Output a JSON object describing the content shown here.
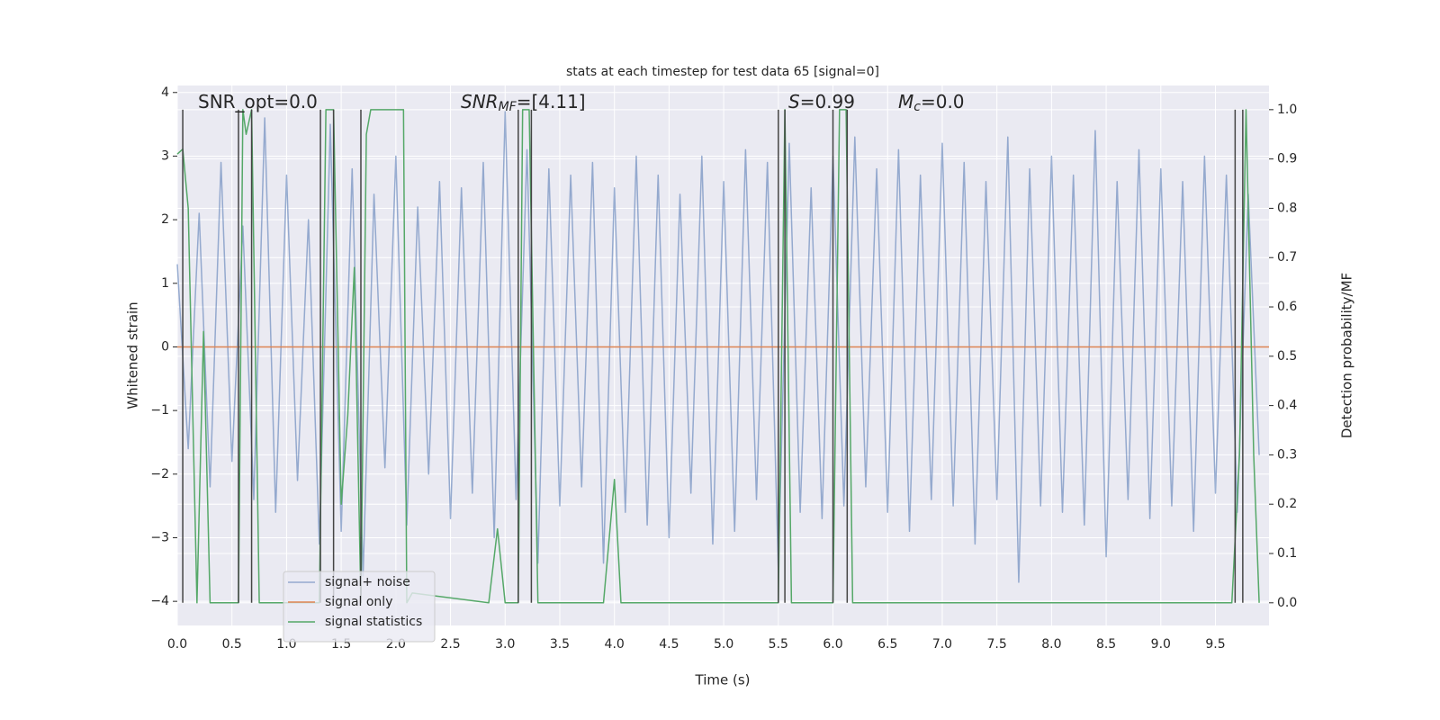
{
  "chart_data": {
    "type": "line",
    "title": "stats at each timestep for test data 65 [signal=0]",
    "xlabel": "Time (s)",
    "ylabel": "Whitened strain",
    "y2label": "Detection probability/MF",
    "xlim": [
      0,
      9.99
    ],
    "ylim": [
      -4.38,
      4.11
    ],
    "y2lim": [
      -0.046,
      1.049
    ],
    "xticks": [
      {
        "value": 0,
        "label": "0.0"
      },
      0.5,
      {
        "value": 1,
        "label": "1.0"
      },
      1.5,
      {
        "value": 2,
        "label": "2.0"
      },
      2.5,
      {
        "value": 3,
        "label": "3.0"
      },
      3.5,
      {
        "value": 4,
        "label": "4.0"
      },
      4.5,
      {
        "value": 5,
        "label": "5.0"
      },
      5.5,
      {
        "value": 6,
        "label": "6.0"
      },
      6.5,
      {
        "value": 7,
        "label": "7.0"
      },
      7.5,
      {
        "value": 8,
        "label": "8.0"
      },
      8.5,
      {
        "value": 9,
        "label": "9.0"
      },
      9.5
    ],
    "yticks": [
      {
        "value": -4,
        "label": "−4"
      },
      {
        "value": -3,
        "label": "−3"
      },
      {
        "value": -2,
        "label": "−2"
      },
      {
        "value": -1,
        "label": "−1"
      },
      0,
      1,
      2,
      3,
      4
    ],
    "y2ticks": [
      {
        "value": 0,
        "label": "0.0"
      },
      0.1,
      0.2,
      0.3,
      0.4,
      0.5,
      0.6,
      0.7,
      0.8,
      0.9,
      {
        "value": 1,
        "label": "1.0"
      }
    ],
    "grid": true,
    "legend": "lower left",
    "annotations": [
      {
        "base": "SNR_opt=0.0"
      },
      {
        "base": "SNR",
        "sub": "MF",
        "tail": "=[4.11]"
      },
      {
        "base": "S",
        "tail": "=0.99"
      },
      {
        "base": "M",
        "sub": "c",
        "tail": "=0.0"
      }
    ],
    "vlines": {
      "color": "#444444",
      "x": [
        0.05,
        0.56,
        0.68,
        1.31,
        1.43,
        1.68,
        3.12,
        3.24,
        5.5,
        5.56,
        6.0,
        6.13,
        9.68,
        9.75
      ],
      "y2": [
        0,
        1
      ]
    },
    "series": [
      {
        "name": "signal+ noise",
        "color": "#4c72b0",
        "x": [
          0,
          0.1,
          0.2,
          0.3,
          0.4,
          0.5,
          0.6,
          0.7,
          0.8,
          0.9,
          1,
          1.1,
          1.2,
          1.3,
          1.4,
          1.5,
          1.6,
          1.7,
          1.8,
          1.9,
          2,
          2.1,
          2.2,
          2.3,
          2.4,
          2.5,
          2.6,
          2.7,
          2.8,
          2.9,
          3,
          3.1,
          3.2,
          3.3,
          3.4,
          3.5,
          3.6,
          3.7,
          3.8,
          3.9,
          4,
          4.1,
          4.2,
          4.3,
          4.4,
          4.5,
          4.6,
          4.7,
          4.8,
          4.9,
          5,
          5.1,
          5.2,
          5.3,
          5.4,
          5.5,
          5.6,
          5.7,
          5.8,
          5.9,
          6,
          6.1,
          6.2,
          6.3,
          6.4,
          6.5,
          6.6,
          6.7,
          6.8,
          6.9,
          7,
          7.1,
          7.2,
          7.3,
          7.4,
          7.5,
          7.6,
          7.7,
          7.8,
          7.9,
          8,
          8.1,
          8.2,
          8.3,
          8.4,
          8.5,
          8.6,
          8.7,
          8.8,
          8.9,
          9,
          9.1,
          9.2,
          9.3,
          9.4,
          9.5,
          9.6,
          9.7,
          9.8,
          9.9
        ],
        "values": [
          1.3,
          -1.6,
          2.1,
          -2.2,
          2.9,
          -1.8,
          1.9,
          -2.4,
          3.6,
          -2.6,
          2.7,
          -2.1,
          2.0,
          -3.1,
          3.5,
          -2.9,
          2.8,
          -3.6,
          2.4,
          -1.9,
          3.0,
          -2.8,
          2.2,
          -2.0,
          2.6,
          -2.7,
          2.5,
          -2.3,
          2.9,
          -3.0,
          3.7,
          -2.4,
          3.1,
          -3.4,
          2.8,
          -2.5,
          2.7,
          -2.2,
          2.9,
          -3.4,
          2.5,
          -2.6,
          3.0,
          -2.8,
          2.7,
          -3.0,
          2.4,
          -2.3,
          3.0,
          -3.1,
          2.6,
          -2.9,
          3.1,
          -2.4,
          2.9,
          -3.5,
          3.2,
          -2.6,
          2.5,
          -2.7,
          3.0,
          -2.5,
          3.3,
          -2.2,
          2.8,
          -2.6,
          3.1,
          -2.9,
          2.7,
          -2.4,
          3.2,
          -2.5,
          2.9,
          -3.1,
          2.6,
          -2.4,
          3.3,
          -3.7,
          2.8,
          -2.5,
          3.0,
          -2.6,
          2.7,
          -2.8,
          3.4,
          -3.3,
          2.6,
          -2.4,
          3.1,
          -2.7,
          2.8,
          -2.5,
          2.6,
          -2.9,
          3.0,
          -2.3,
          2.7,
          -2.6,
          2.4,
          -1.7
        ]
      },
      {
        "name": "signal only",
        "color": "#dd8452",
        "x": [
          0,
          9.99
        ],
        "values": [
          0,
          0
        ]
      },
      {
        "name": "signal statistics",
        "color": "#55a868",
        "axis": "y2",
        "x": [
          0,
          0.05,
          0.1,
          0.18,
          0.24,
          0.3,
          0.56,
          0.6,
          0.63,
          0.68,
          0.75,
          1.3,
          1.36,
          1.43,
          1.5,
          1.56,
          1.62,
          1.68,
          1.73,
          1.77,
          2.07,
          2.1,
          2.15,
          2.85,
          2.93,
          3.0,
          3.12,
          3.16,
          3.22,
          3.3,
          3.9,
          4.0,
          4.06,
          5.5,
          5.56,
          5.62,
          6.0,
          6.06,
          6.12,
          6.18,
          9.65,
          9.72,
          9.78,
          9.85,
          9.9
        ],
        "values": [
          0.91,
          0.92,
          0.8,
          0,
          0.55,
          0,
          0,
          1,
          0.95,
          1,
          0,
          0,
          1,
          1,
          0.2,
          0.38,
          0.68,
          0,
          0.95,
          1,
          1,
          0,
          0.02,
          0,
          0.15,
          0,
          0,
          1,
          1,
          0,
          0,
          0.25,
          0,
          0,
          1,
          0,
          0,
          1,
          1,
          0,
          0,
          0.3,
          1,
          0.3,
          0
        ]
      }
    ]
  }
}
